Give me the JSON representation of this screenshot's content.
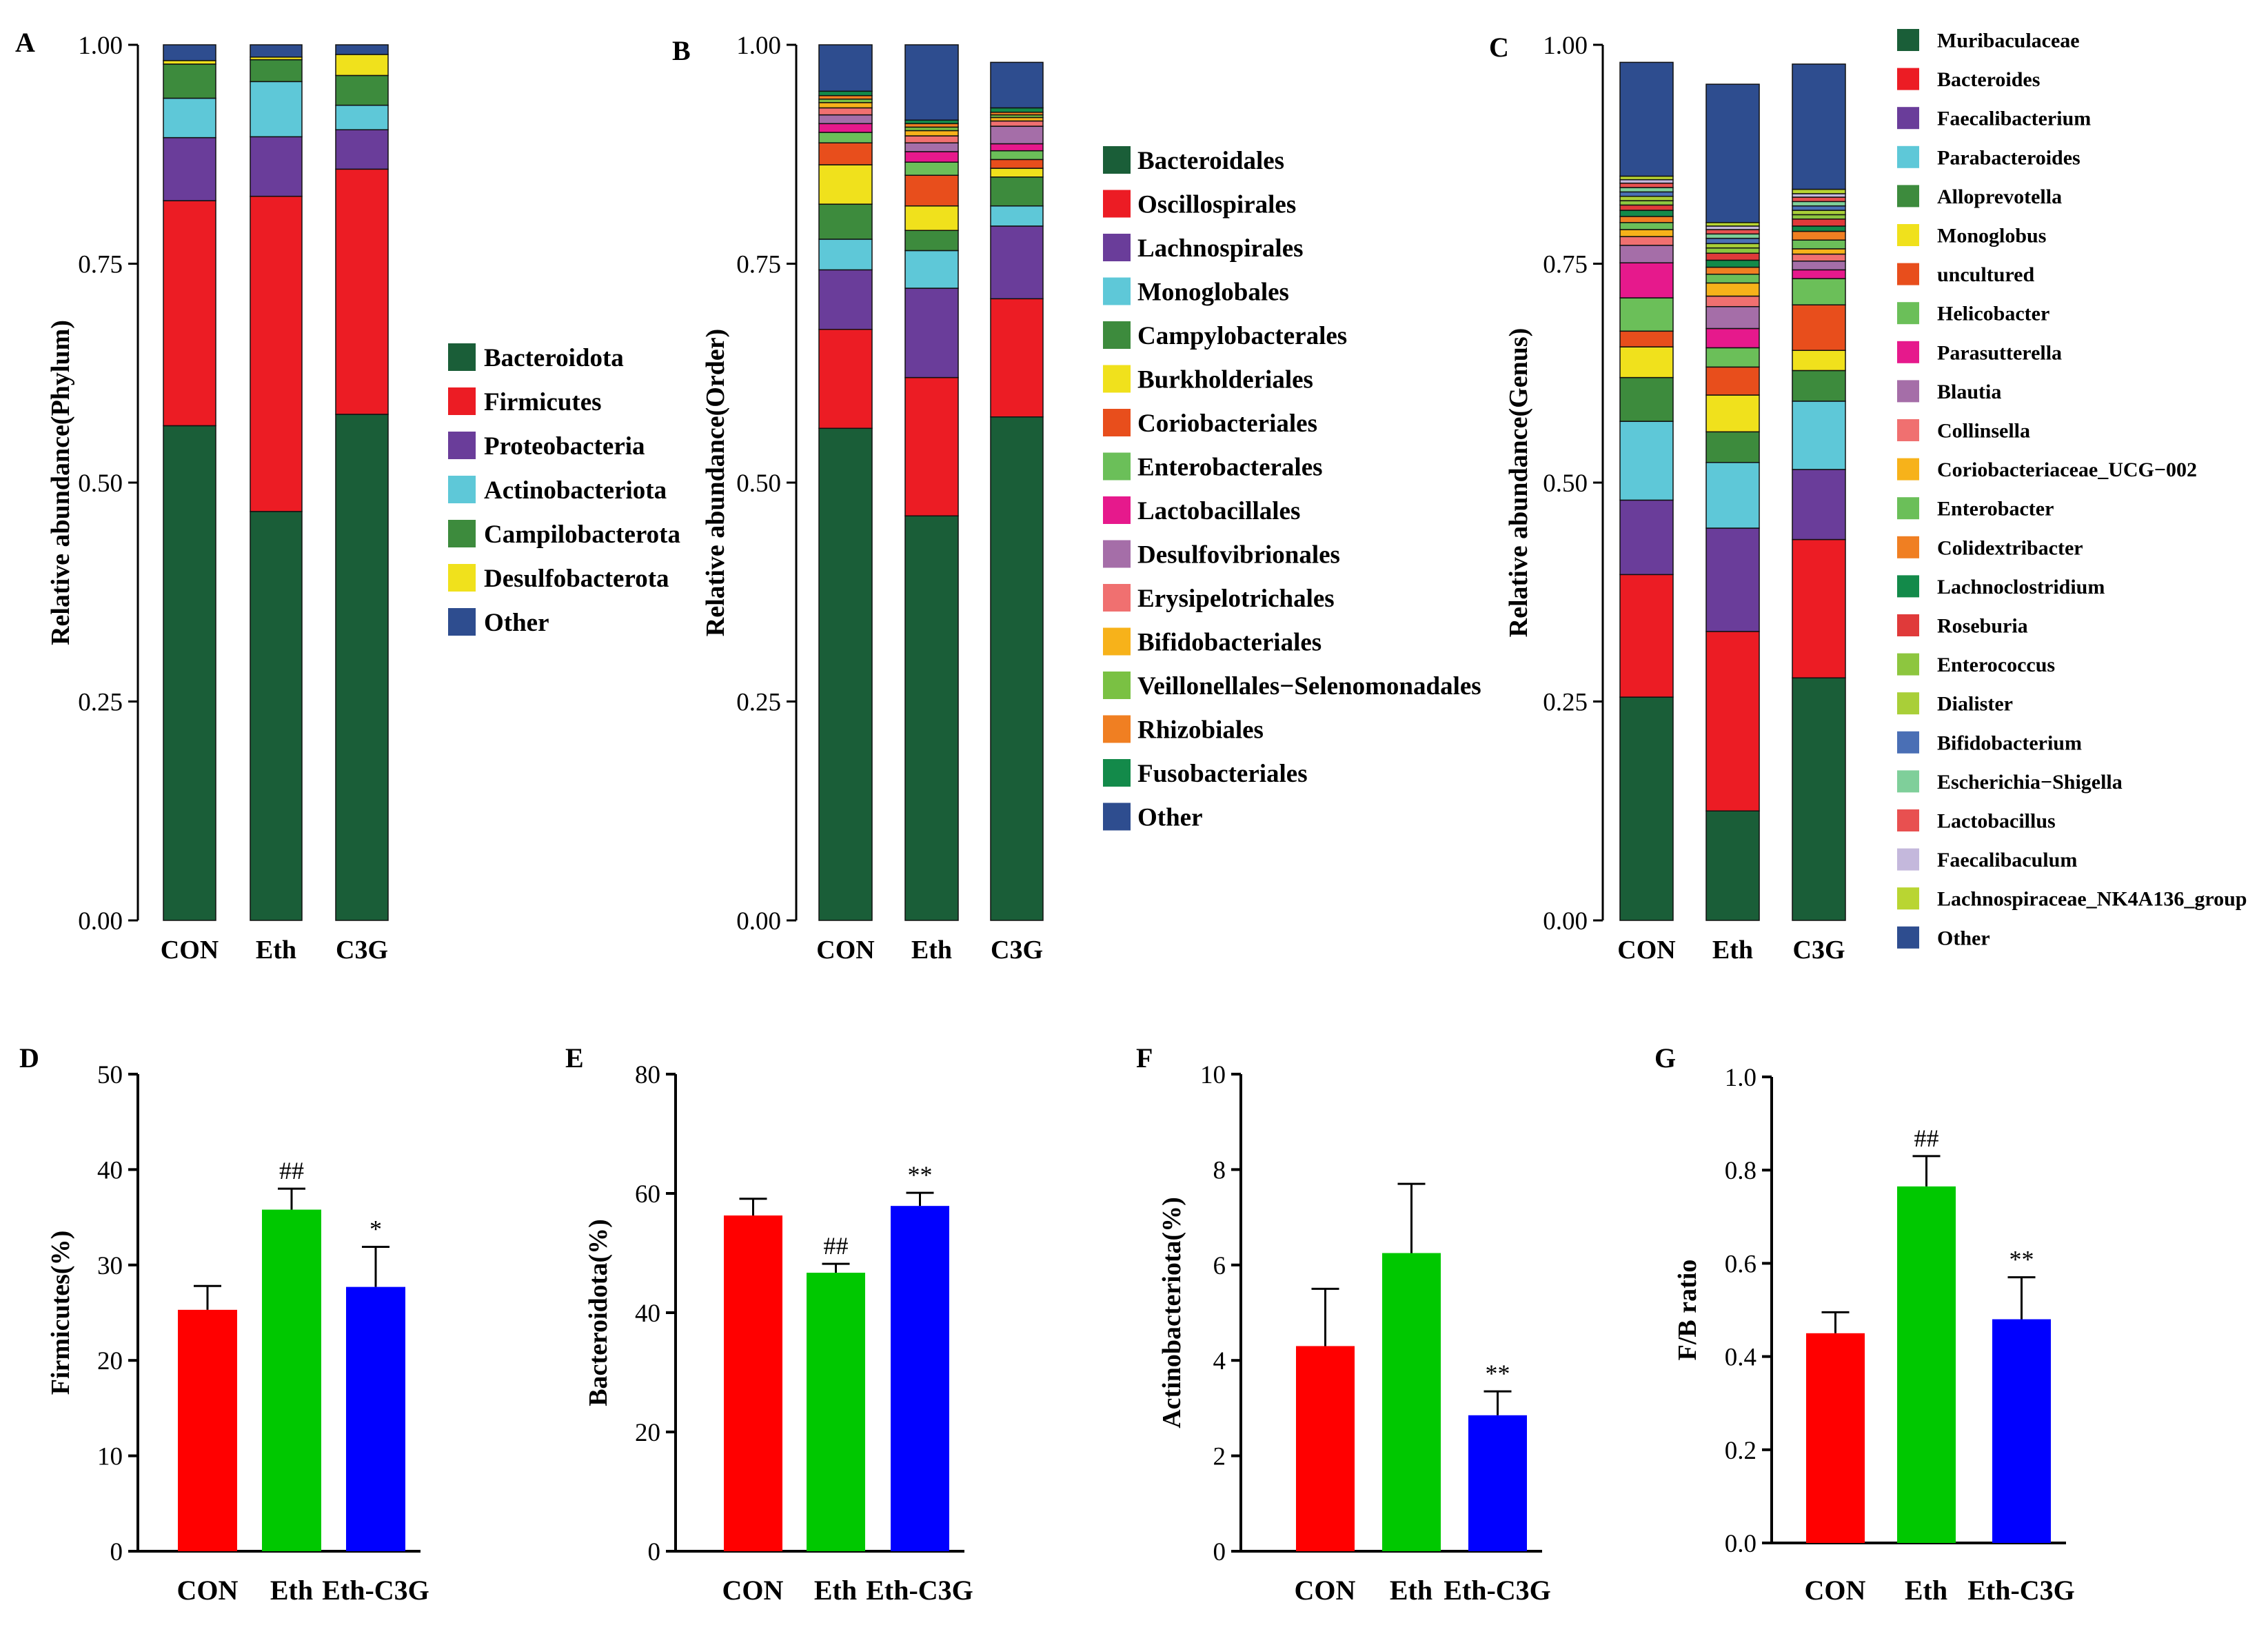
{
  "colors": {
    "phylum": {
      "Bacteroidota": "#1a5e38",
      "Firmicutes": "#ec1c24",
      "Proteobacteria": "#6a3d9a",
      "Actinobacteriota": "#5ec8d8",
      "Campilobacterota": "#3d8b3d",
      "Desulfobacterota": "#f0e11c",
      "Other": "#2e4d8f"
    },
    "order": [
      "#1a5e38",
      "#ec1c24",
      "#6a3d9a",
      "#5ec8d8",
      "#3d8b3d",
      "#f0e11c",
      "#e84e1c",
      "#6bbf59",
      "#e6198c",
      "#a56ea8",
      "#f07070",
      "#f7b21a",
      "#7ac143",
      "#f07f22",
      "#138a4a",
      "#2e4d8f"
    ],
    "genus": [
      "#1a5e38",
      "#ec1c24",
      "#6a3d9a",
      "#5ec8d8",
      "#3d8b3d",
      "#f0e11c",
      "#e84e1c",
      "#6bbf59",
      "#e6198c",
      "#a56ea8",
      "#f07070",
      "#f7b21a",
      "#6bbf59",
      "#f07f22",
      "#138a4a",
      "#e03a3a",
      "#8dc63f",
      "#a9cf38",
      "#4a6fb5",
      "#7fcf9a",
      "#e85050",
      "#c4b8dc",
      "#b9d532",
      "#2e4d8f"
    ],
    "bar_red": "#ff0000",
    "bar_green": "#00c800",
    "bar_blue": "#0000ff"
  },
  "chart_data": [
    {
      "panel": "A",
      "type": "bar",
      "stacked": true,
      "ylabel": "Relative abundance(Phylum)",
      "ylim": [
        0,
        1
      ],
      "yticks": [
        "0.00",
        "0.25",
        "0.50",
        "0.75",
        "1.00"
      ],
      "categories": [
        "CON",
        "Eth",
        "C3G"
      ],
      "series": [
        {
          "name": "Bacteroidota",
          "values": [
            0.565,
            0.467,
            0.578
          ]
        },
        {
          "name": "Firmicutes",
          "values": [
            0.257,
            0.36,
            0.28
          ]
        },
        {
          "name": "Proteobacteria",
          "values": [
            0.072,
            0.068,
            0.045
          ]
        },
        {
          "name": "Actinobacteriota",
          "values": [
            0.045,
            0.063,
            0.028
          ]
        },
        {
          "name": "Campilobacterota",
          "values": [
            0.039,
            0.025,
            0.034
          ]
        },
        {
          "name": "Desulfobacterota",
          "values": [
            0.004,
            0.003,
            0.024
          ]
        },
        {
          "name": "Other",
          "values": [
            0.018,
            0.014,
            0.011
          ]
        }
      ]
    },
    {
      "panel": "B",
      "type": "bar",
      "stacked": true,
      "ylabel": "Relative abundance(Order)",
      "ylim": [
        0,
        1
      ],
      "yticks": [
        "0.00",
        "0.25",
        "0.50",
        "0.75",
        "1.00"
      ],
      "categories": [
        "CON",
        "Eth",
        "C3G"
      ],
      "series": [
        {
          "name": "Bacteroidales",
          "values": [
            0.562,
            0.462,
            0.575
          ]
        },
        {
          "name": "Oscillospirales",
          "values": [
            0.113,
            0.158,
            0.135
          ]
        },
        {
          "name": "Lachnospirales",
          "values": [
            0.068,
            0.102,
            0.083
          ]
        },
        {
          "name": "Monoglobales",
          "values": [
            0.035,
            0.043,
            0.023
          ]
        },
        {
          "name": "Campylobacterales",
          "values": [
            0.04,
            0.023,
            0.033
          ]
        },
        {
          "name": "Burkholderiales",
          "values": [
            0.045,
            0.028,
            0.01
          ]
        },
        {
          "name": "Coriobacteriales",
          "values": [
            0.025,
            0.035,
            0.01
          ]
        },
        {
          "name": "Enterobacterales",
          "values": [
            0.012,
            0.015,
            0.01
          ]
        },
        {
          "name": "Lactobacillales",
          "values": [
            0.01,
            0.012,
            0.008
          ]
        },
        {
          "name": "Desulfovibrionales",
          "values": [
            0.01,
            0.01,
            0.02
          ]
        },
        {
          "name": "Erysipelotrichales",
          "values": [
            0.008,
            0.008,
            0.006
          ]
        },
        {
          "name": "Bifidobacteriales",
          "values": [
            0.006,
            0.006,
            0.004
          ]
        },
        {
          "name": "Veillonellales−Selenomonadales",
          "values": [
            0.004,
            0.004,
            0.003
          ]
        },
        {
          "name": "Rhizobiales",
          "values": [
            0.004,
            0.004,
            0.003
          ]
        },
        {
          "name": "Fusobacteriales",
          "values": [
            0.005,
            0.004,
            0.005
          ]
        },
        {
          "name": "Other",
          "values": [
            0.053,
            0.086,
            0.052
          ]
        }
      ]
    },
    {
      "panel": "C",
      "type": "bar",
      "stacked": true,
      "ylabel": "Relative abundance(Genus)",
      "ylim": [
        0,
        1
      ],
      "yticks": [
        "0.00",
        "0.25",
        "0.50",
        "0.75",
        "1.00"
      ],
      "categories": [
        "CON",
        "Eth",
        "C3G"
      ],
      "series": [
        {
          "name": "Muribaculaceae",
          "values": [
            0.255,
            0.125,
            0.277
          ]
        },
        {
          "name": "Bacteroides",
          "values": [
            0.14,
            0.205,
            0.158
          ]
        },
        {
          "name": "Faecalibacterium",
          "values": [
            0.085,
            0.118,
            0.08
          ]
        },
        {
          "name": "Parabacteroides",
          "values": [
            0.09,
            0.075,
            0.078
          ]
        },
        {
          "name": "Alloprevotella",
          "values": [
            0.05,
            0.035,
            0.035
          ]
        },
        {
          "name": "Monoglobus",
          "values": [
            0.035,
            0.042,
            0.023
          ]
        },
        {
          "name": "uncultured",
          "values": [
            0.018,
            0.032,
            0.052
          ]
        },
        {
          "name": "Helicobacter",
          "values": [
            0.038,
            0.022,
            0.03
          ]
        },
        {
          "name": "Parasutterella",
          "values": [
            0.04,
            0.022,
            0.01
          ]
        },
        {
          "name": "Blautia",
          "values": [
            0.02,
            0.025,
            0.01
          ]
        },
        {
          "name": "Collinsella",
          "values": [
            0.01,
            0.012,
            0.008
          ]
        },
        {
          "name": "Coriobacteriaceae_UCG−002",
          "values": [
            0.008,
            0.015,
            0.006
          ]
        },
        {
          "name": "Enterobacter",
          "values": [
            0.008,
            0.01,
            0.01
          ]
        },
        {
          "name": "Colidextribacter",
          "values": [
            0.007,
            0.008,
            0.01
          ]
        },
        {
          "name": "Lachnoclostridium",
          "values": [
            0.007,
            0.008,
            0.006
          ]
        },
        {
          "name": "Roseburia",
          "values": [
            0.006,
            0.008,
            0.008
          ]
        },
        {
          "name": "Enterococcus",
          "values": [
            0.005,
            0.006,
            0.005
          ]
        },
        {
          "name": "Dialister",
          "values": [
            0.005,
            0.005,
            0.005
          ]
        },
        {
          "name": "Bifidobacterium",
          "values": [
            0.005,
            0.006,
            0.005
          ]
        },
        {
          "name": "Escherichia−Shigella",
          "values": [
            0.005,
            0.005,
            0.005
          ]
        },
        {
          "name": "Lactobacillus",
          "values": [
            0.005,
            0.005,
            0.005
          ]
        },
        {
          "name": "Faecalibaculum",
          "values": [
            0.004,
            0.004,
            0.004
          ]
        },
        {
          "name": "Lachnospiraceae_NK4A136_group",
          "values": [
            0.004,
            0.004,
            0.005
          ]
        },
        {
          "name": "Other",
          "values": [
            0.13,
            0.158,
            0.143
          ]
        }
      ]
    },
    {
      "panel": "D",
      "type": "bar",
      "ylabel": "Firmicutes(%)",
      "ylim": [
        0,
        50
      ],
      "yticks": [
        "0",
        "10",
        "20",
        "30",
        "40",
        "50"
      ],
      "categories": [
        "CON",
        "Eth",
        "Eth-C3G"
      ],
      "values": [
        25.3,
        35.8,
        27.7
      ],
      "errors": [
        2.5,
        2.2,
        4.2
      ],
      "annotations": [
        "",
        "##",
        "*"
      ]
    },
    {
      "panel": "E",
      "type": "bar",
      "ylabel": "Bacteroidota(%)",
      "ylim": [
        0,
        80
      ],
      "yticks": [
        "0",
        "20",
        "40",
        "60",
        "80"
      ],
      "categories": [
        "CON",
        "Eth",
        "Eth-C3G"
      ],
      "values": [
        56.3,
        46.7,
        57.9
      ],
      "errors": [
        2.8,
        1.5,
        2.2
      ],
      "annotations": [
        "",
        "##",
        "**"
      ]
    },
    {
      "panel": "F",
      "type": "bar",
      "ylabel": "Actinobacteriota(%)",
      "ylim": [
        0,
        10
      ],
      "yticks": [
        "0",
        "2",
        "4",
        "6",
        "8",
        "10"
      ],
      "categories": [
        "CON",
        "Eth",
        "Eth-C3G"
      ],
      "values": [
        4.3,
        6.25,
        2.85
      ],
      "errors": [
        1.2,
        1.45,
        0.5
      ],
      "annotations": [
        "",
        "",
        "**"
      ]
    },
    {
      "panel": "G",
      "type": "bar",
      "ylabel": "F/B ratio",
      "ylim": [
        0,
        1
      ],
      "yticks": [
        "0.0",
        "0.2",
        "0.4",
        "0.6",
        "0.8",
        "1.0"
      ],
      "categories": [
        "CON",
        "Eth",
        "Eth-C3G"
      ],
      "values": [
        0.45,
        0.765,
        0.48
      ],
      "errors": [
        0.045,
        0.065,
        0.09
      ],
      "annotations": [
        "",
        "##",
        "**"
      ]
    }
  ]
}
